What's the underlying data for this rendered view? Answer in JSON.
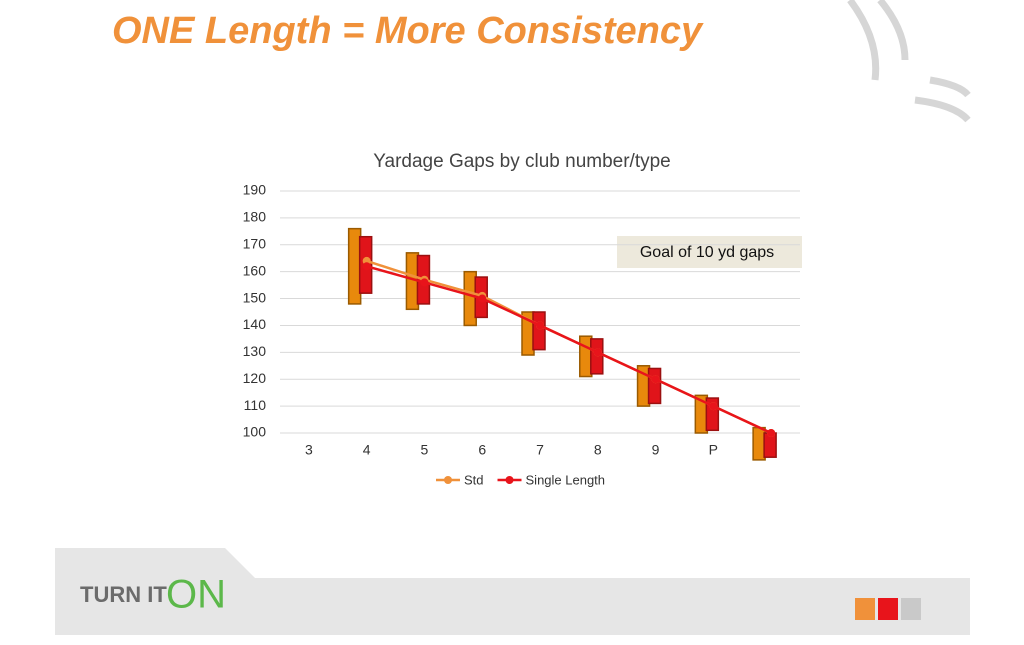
{
  "slide_title": "ONE Length = More Consistency",
  "footer": {
    "brand": "TURN IT",
    "brand_accent": "ON"
  },
  "chart_data": {
    "type": "line",
    "title": "Yardage Gaps by club number/type",
    "annotation": "Goal of 10 yd gaps",
    "categories": [
      "3",
      "4",
      "5",
      "6",
      "7",
      "8",
      "9",
      "P",
      null
    ],
    "ylim": [
      100,
      190
    ],
    "yticks": [
      100,
      110,
      120,
      130,
      140,
      150,
      160,
      170,
      180,
      190
    ],
    "grid": true,
    "legend": "bottom",
    "series": [
      {
        "name": "Std",
        "color": "#f0913a",
        "box_color": "#e8890c",
        "values": [
          null,
          164,
          157,
          151,
          140,
          130,
          120,
          110,
          100
        ],
        "low": [
          null,
          148,
          146,
          140,
          129,
          121,
          110,
          100,
          90
        ],
        "high": [
          null,
          176,
          167,
          160,
          145,
          136,
          125,
          114,
          102
        ]
      },
      {
        "name": "Single Length",
        "color": "#e8141b",
        "box_color": "#e0141a",
        "values": [
          null,
          162,
          156,
          150,
          140,
          130,
          120,
          110,
          100
        ],
        "low": [
          null,
          152,
          148,
          143,
          131,
          122,
          111,
          101,
          91
        ],
        "high": [
          null,
          173,
          166,
          158,
          145,
          135,
          124,
          113,
          100
        ]
      }
    ]
  }
}
